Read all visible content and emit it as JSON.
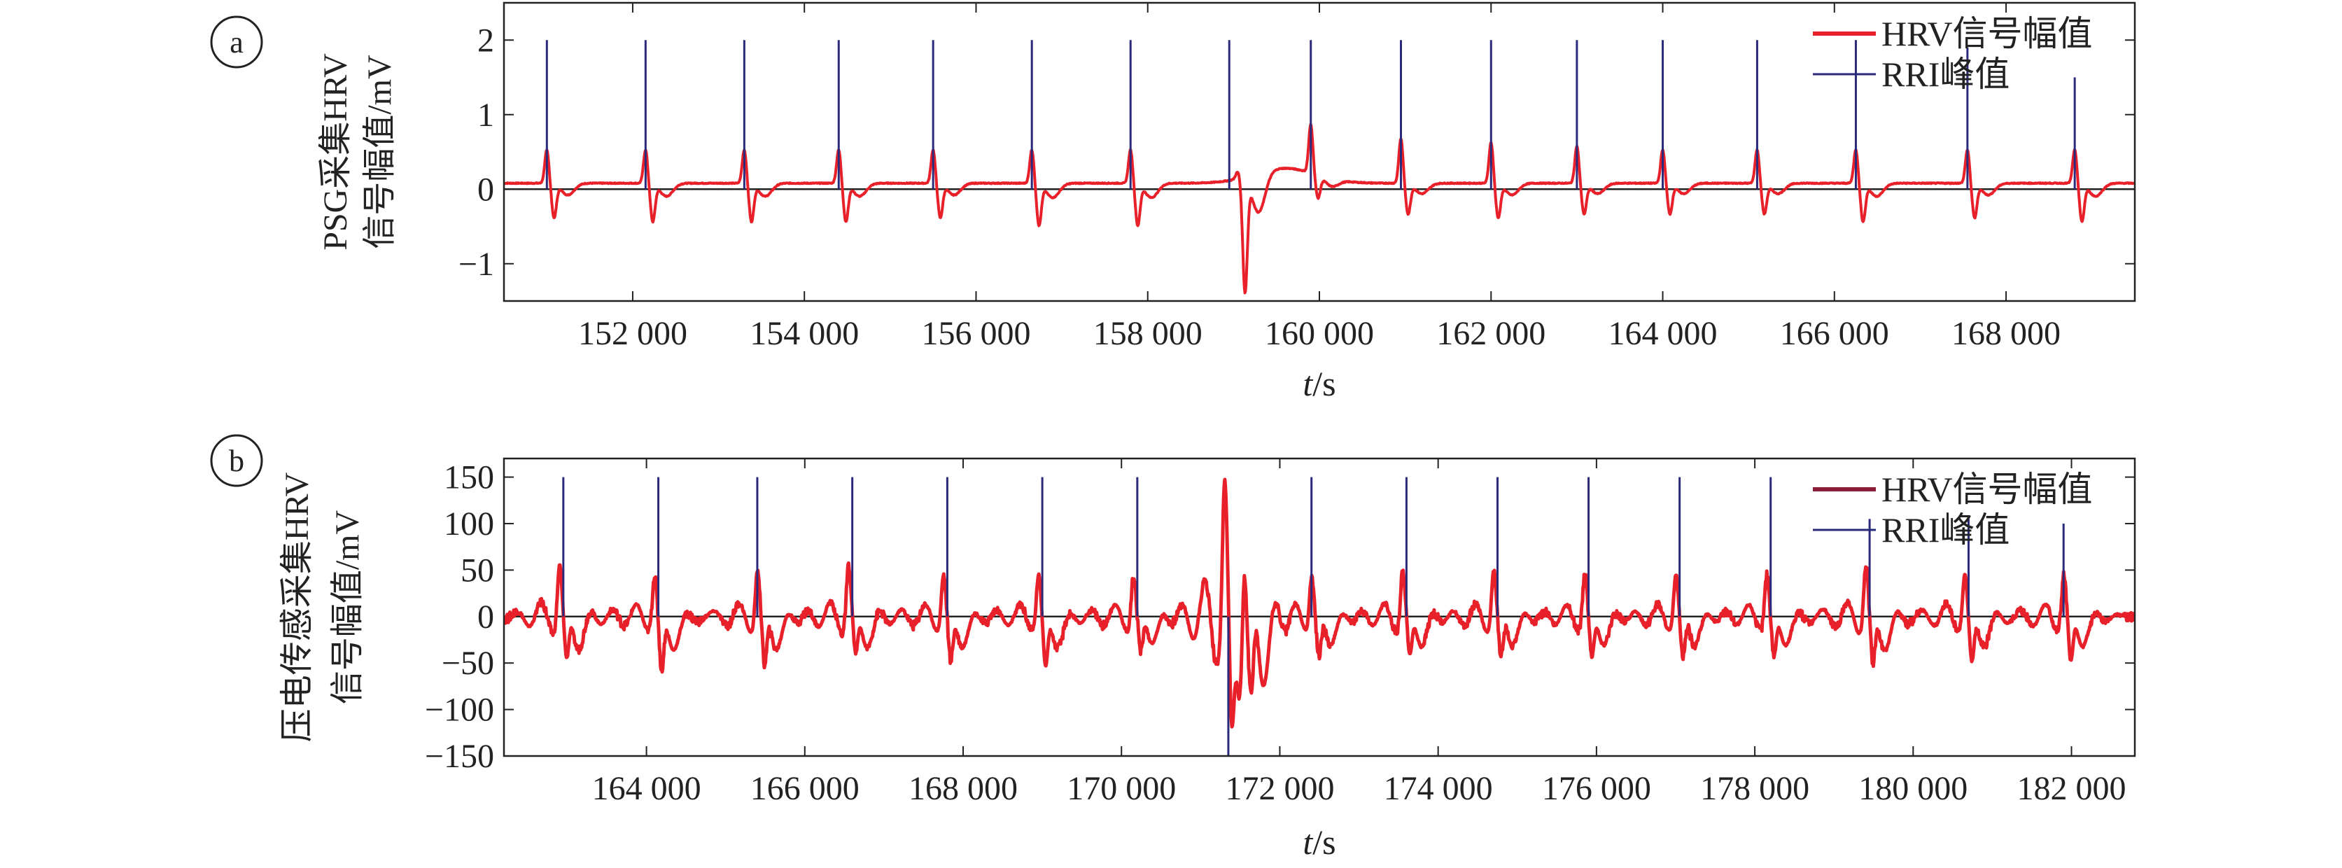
{
  "colors": {
    "hrv": "#e8202a",
    "rri": "#2a2a7c",
    "axis": "#222222",
    "zero_line": "#222222"
  },
  "chart_data": [
    {
      "type": "line",
      "panel_label": "a",
      "ylabel_lines": [
        "PSG采集HRV",
        "信号幅值/mV"
      ],
      "xlabel_var": "t",
      "xlabel_unit": "/s",
      "xlim": [
        150500,
        169500
      ],
      "ylim": [
        -1.5,
        2.5
      ],
      "x_ticks": [
        152000,
        154000,
        156000,
        158000,
        160000,
        162000,
        164000,
        166000,
        168000
      ],
      "x_tick_labels": [
        "152 000",
        "154 000",
        "156 000",
        "158 000",
        "160 000",
        "162 000",
        "164 000",
        "166 000",
        "168 000"
      ],
      "y_ticks": [
        -1,
        0,
        1,
        2
      ],
      "y_tick_labels": [
        "−1",
        "0",
        "1",
        "2"
      ],
      "legend_position": "top-right",
      "series": [
        {
          "name": "HRV信号幅值",
          "kind": "line",
          "baseline": 0.08,
          "beats": [
            {
              "t": 151000,
              "amp": 0.45,
              "neg": -0.45
            },
            {
              "t": 152150,
              "amp": 0.45,
              "neg": -0.5
            },
            {
              "t": 153300,
              "amp": 0.45,
              "neg": -0.5
            },
            {
              "t": 154400,
              "amp": 0.45,
              "neg": -0.5
            },
            {
              "t": 155500,
              "amp": 0.45,
              "neg": -0.45
            },
            {
              "t": 156650,
              "amp": 0.45,
              "neg": -0.55
            },
            {
              "t": 157800,
              "amp": 0.45,
              "neg": -0.55
            },
            {
              "t": 159050,
              "amp": 0.1,
              "neg": -1.5
            },
            {
              "t": 159900,
              "amp": 0.65,
              "neg": -0.3
            },
            {
              "t": 160950,
              "amp": 0.6,
              "neg": -0.4
            },
            {
              "t": 162000,
              "amp": 0.55,
              "neg": -0.45
            },
            {
              "t": 163000,
              "amp": 0.5,
              "neg": -0.4
            },
            {
              "t": 164000,
              "amp": 0.45,
              "neg": -0.4
            },
            {
              "t": 165100,
              "amp": 0.45,
              "neg": -0.4
            },
            {
              "t": 166250,
              "amp": 0.45,
              "neg": -0.5
            },
            {
              "t": 167550,
              "amp": 0.45,
              "neg": -0.45
            },
            {
              "t": 168800,
              "amp": 0.45,
              "neg": -0.5
            }
          ]
        },
        {
          "name": "RRI峰值",
          "kind": "spikes",
          "points": [
            {
              "t": 151000,
              "v": 2.0
            },
            {
              "t": 152150,
              "v": 2.0
            },
            {
              "t": 153300,
              "v": 2.0
            },
            {
              "t": 154400,
              "v": 2.0
            },
            {
              "t": 155500,
              "v": 2.0
            },
            {
              "t": 156650,
              "v": 2.0
            },
            {
              "t": 157800,
              "v": 2.0
            },
            {
              "t": 158950,
              "v": 2.0
            },
            {
              "t": 159900,
              "v": 2.0
            },
            {
              "t": 160950,
              "v": 2.0
            },
            {
              "t": 162000,
              "v": 2.0
            },
            {
              "t": 163000,
              "v": 2.0
            },
            {
              "t": 164000,
              "v": 2.0
            },
            {
              "t": 165100,
              "v": 2.0
            },
            {
              "t": 166250,
              "v": 2.0
            },
            {
              "t": 167550,
              "v": 1.9
            },
            {
              "t": 168800,
              "v": 1.5
            }
          ]
        }
      ]
    },
    {
      "type": "line",
      "panel_label": "b",
      "ylabel_lines": [
        "压电传感采集HRV",
        "信号幅值/mV"
      ],
      "xlabel_var": "t",
      "xlabel_unit": "/s",
      "xlim": [
        162200,
        182800
      ],
      "ylim": [
        -150,
        170
      ],
      "x_ticks": [
        164000,
        166000,
        168000,
        170000,
        172000,
        174000,
        176000,
        178000,
        180000,
        182000
      ],
      "x_tick_labels": [
        "164 000",
        "166 000",
        "168 000",
        "170 000",
        "172 000",
        "174 000",
        "176 000",
        "178 000",
        "180 000",
        "182 000"
      ],
      "y_ticks": [
        -150,
        -100,
        -50,
        0,
        50,
        100,
        150
      ],
      "y_tick_labels": [
        "−150",
        "−100",
        "−50",
        "0",
        "50",
        "100",
        "150"
      ],
      "legend_position": "top-right",
      "series": [
        {
          "name": "HRV信号幅值",
          "kind": "line",
          "baseline": 0,
          "beats": [
            {
              "t": 162900,
              "amp": 55,
              "neg": -60
            },
            {
              "t": 164100,
              "amp": 45,
              "neg": -70
            },
            {
              "t": 165400,
              "amp": 50,
              "neg": -65
            },
            {
              "t": 166550,
              "amp": 55,
              "neg": -55
            },
            {
              "t": 167750,
              "amp": 45,
              "neg": -60
            },
            {
              "t": 168950,
              "amp": 45,
              "neg": -65
            },
            {
              "t": 170150,
              "amp": 45,
              "neg": -50
            },
            {
              "t": 171300,
              "amp": 115,
              "neg": -150
            },
            {
              "t": 171550,
              "amp": 120,
              "neg": -100
            },
            {
              "t": 172400,
              "amp": 45,
              "neg": -55
            },
            {
              "t": 173550,
              "amp": 50,
              "neg": -55
            },
            {
              "t": 174700,
              "amp": 50,
              "neg": -55
            },
            {
              "t": 175850,
              "amp": 45,
              "neg": -55
            },
            {
              "t": 177000,
              "amp": 45,
              "neg": -55
            },
            {
              "t": 178150,
              "amp": 45,
              "neg": -55
            },
            {
              "t": 179400,
              "amp": 55,
              "neg": -65
            },
            {
              "t": 180650,
              "amp": 45,
              "neg": -60
            },
            {
              "t": 181900,
              "amp": 45,
              "neg": -60
            }
          ]
        },
        {
          "name": "RRI峰值",
          "kind": "spikes",
          "points": [
            {
              "t": 162950,
              "v": 150
            },
            {
              "t": 164150,
              "v": 150
            },
            {
              "t": 165400,
              "v": 150
            },
            {
              "t": 166600,
              "v": 150
            },
            {
              "t": 167800,
              "v": 150
            },
            {
              "t": 169000,
              "v": 150
            },
            {
              "t": 170200,
              "v": 150
            },
            {
              "t": 171350,
              "v": -150
            },
            {
              "t": 172400,
              "v": 150
            },
            {
              "t": 173600,
              "v": 150
            },
            {
              "t": 174750,
              "v": 150
            },
            {
              "t": 175900,
              "v": 150
            },
            {
              "t": 177050,
              "v": 150
            },
            {
              "t": 178200,
              "v": 150
            },
            {
              "t": 179450,
              "v": 105
            },
            {
              "t": 180700,
              "v": 105
            },
            {
              "t": 181900,
              "v": 100
            }
          ]
        }
      ]
    }
  ]
}
